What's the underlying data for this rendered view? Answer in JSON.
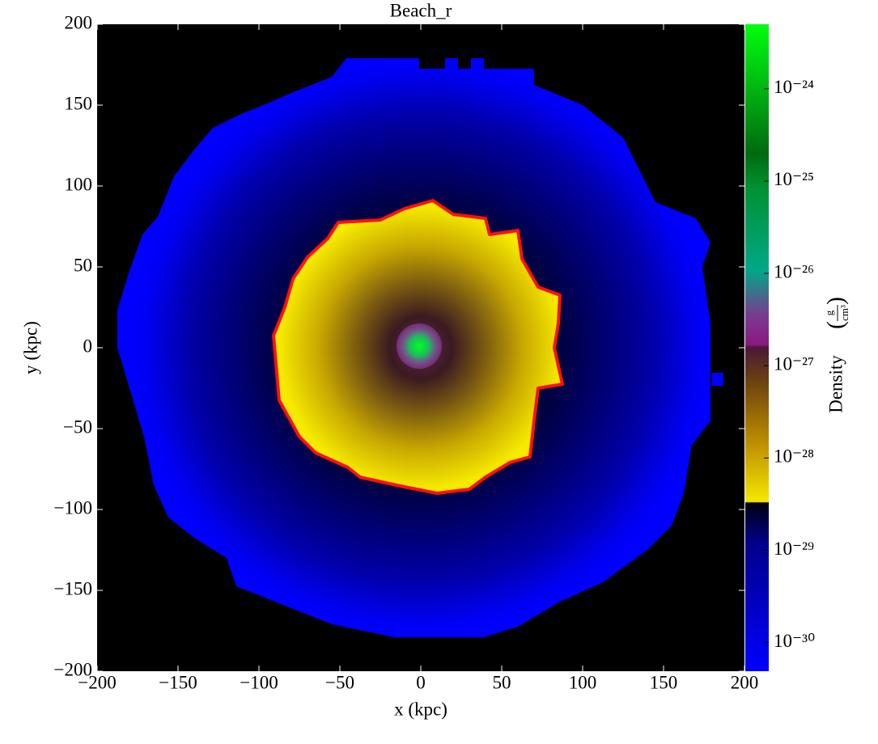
{
  "chart_data": {
    "type": "image",
    "title": "Beach_r",
    "x_label": "x  (kpc)",
    "y_label": "y  (kpc)",
    "xlim": [
      -200,
      200
    ],
    "ylim": [
      -200,
      200
    ],
    "xticks": [
      {
        "value": -200,
        "label": "−200"
      },
      {
        "value": -150,
        "label": "−150"
      },
      {
        "value": -100,
        "label": "−100"
      },
      {
        "value": -50,
        "label": "−50"
      },
      0,
      50,
      100,
      150,
      200
    ],
    "yticks": [
      {
        "value": -200,
        "label": "−200"
      },
      {
        "value": -150,
        "label": "−150"
      },
      {
        "value": -100,
        "label": "−100"
      },
      {
        "value": -50,
        "label": "−50"
      },
      0,
      50,
      100,
      150,
      200
    ],
    "colorbar": {
      "label": "Density",
      "unit_numerator": "g",
      "unit_denominator": "cm³",
      "scale": "log",
      "lim": [
        4.9e-31,
        5e-24
      ],
      "ticks": [
        {
          "value": 1e-30,
          "label": "10⁻³⁰"
        },
        {
          "value": 1e-29,
          "label": "10⁻²⁹"
        },
        {
          "value": 1e-28,
          "label": "10⁻²⁸"
        },
        {
          "value": 1e-27,
          "label": "10⁻²⁷"
        },
        {
          "value": 1e-26,
          "label": "10⁻²⁶"
        },
        {
          "value": 1e-25,
          "label": "10⁻²⁵"
        },
        {
          "value": 1e-24,
          "label": "10⁻²⁴"
        }
      ]
    }
  }
}
